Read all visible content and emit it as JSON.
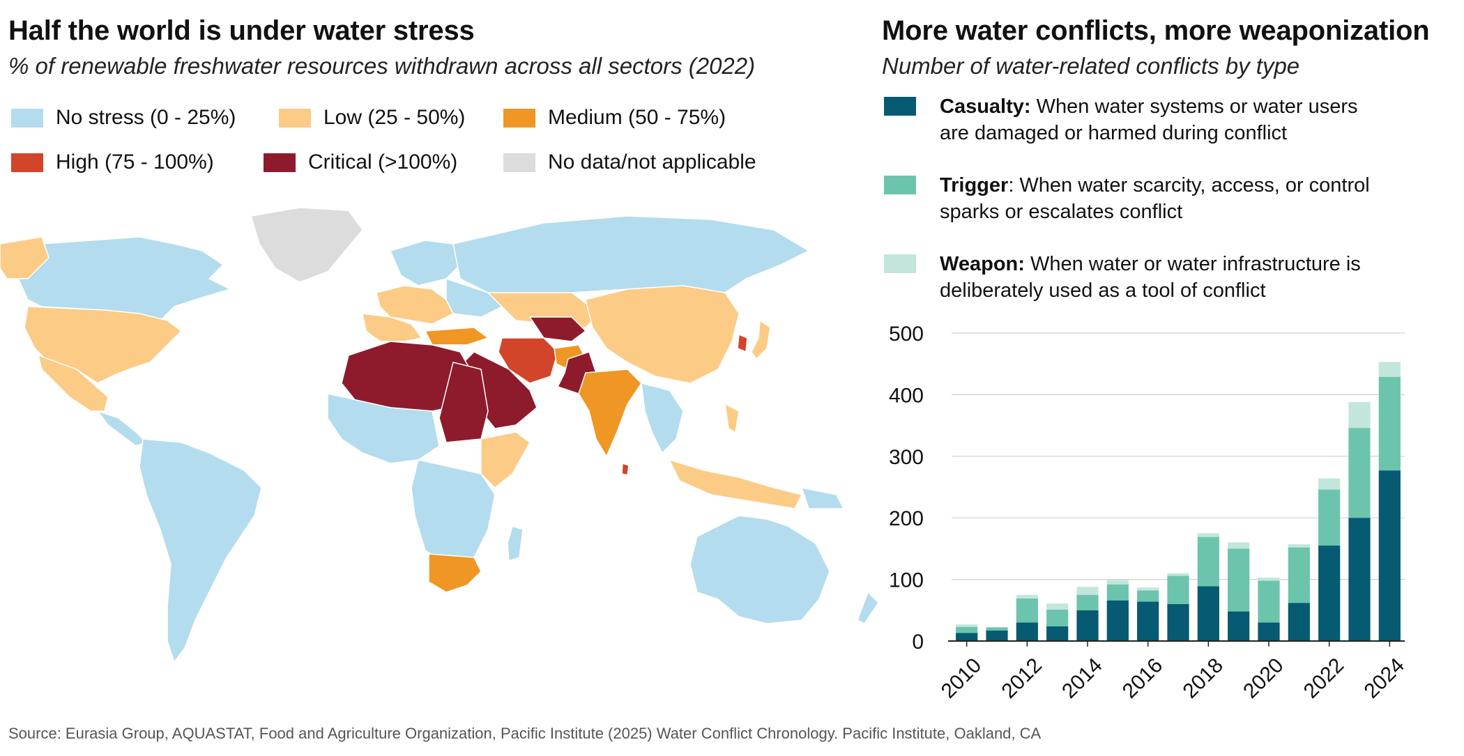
{
  "left": {
    "title": "Half the world is under water stress",
    "subtitle": "% of renewable freshwater resources withdrawn across all sectors (2022)",
    "legend": [
      {
        "label": "No stress (0 - 25%)",
        "color": "#b3dcee"
      },
      {
        "label": "Low (25 - 50%)",
        "color": "#fccb85"
      },
      {
        "label": "Medium (50 - 75%)",
        "color": "#ef9624"
      },
      {
        "label": "High (75 - 100%)",
        "color": "#d2452a"
      },
      {
        "label": "Critical (>100%)",
        "color": "#8e1b2c"
      },
      {
        "label": "No data/not applicable",
        "color": "#dcdcdc"
      }
    ]
  },
  "right": {
    "title": "More water conflicts, more weaponization",
    "subtitle": "Number of water-related conflicts by type",
    "types": [
      {
        "name": "Casualty:",
        "desc": " When water systems or water users",
        "desc2": "are damaged or harmed during conflict",
        "color": "#065a71"
      },
      {
        "name": "Trigger",
        "desc": ": When water scarcity, access, or control",
        "desc2": "sparks or escalates conflict",
        "color": "#6cc4ad"
      },
      {
        "name": "Weapon:",
        "desc": " When water or water infrastructure is",
        "desc2": "deliberately used as a tool of conflict",
        "color": "#c3e6dc"
      }
    ]
  },
  "chart_data": {
    "type": "bar",
    "stacked": true,
    "categories": [
      "2010",
      "2011",
      "2012",
      "2013",
      "2014",
      "2015",
      "2016",
      "2017",
      "2018",
      "2019",
      "2020",
      "2021",
      "2022",
      "2023",
      "2024"
    ],
    "tick_labels": [
      "2010",
      "2012",
      "2014",
      "2016",
      "2018",
      "2020",
      "2022",
      "2024"
    ],
    "series": [
      {
        "name": "Casualty",
        "color": "#065a71",
        "values": [
          13,
          17,
          30,
          24,
          50,
          66,
          64,
          60,
          89,
          48,
          30,
          62,
          155,
          200,
          277
        ]
      },
      {
        "name": "Trigger",
        "color": "#6cc4ad",
        "values": [
          10,
          5,
          39,
          27,
          25,
          26,
          18,
          46,
          80,
          102,
          68,
          90,
          91,
          146,
          152
        ]
      },
      {
        "name": "Weapon",
        "color": "#c3e6dc",
        "values": [
          4,
          1,
          6,
          10,
          13,
          7,
          5,
          4,
          6,
          10,
          5,
          5,
          18,
          42,
          24
        ]
      }
    ],
    "ylim": [
      0,
      500
    ],
    "yticks": [
      0,
      100,
      200,
      300,
      400,
      500
    ],
    "grid": true
  },
  "source": "Source: Eurasia Group, AQUASTAT, Food and Agriculture Organization, Pacific Institute (2025) Water Conflict Chronology. Pacific Institute, Oakland, CA"
}
